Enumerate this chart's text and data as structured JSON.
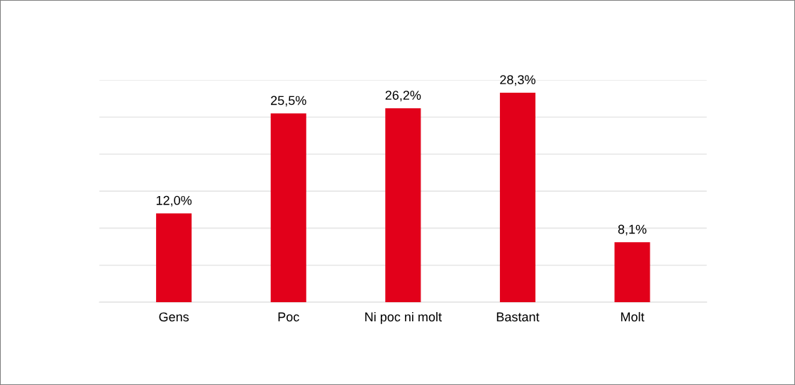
{
  "chart_data": {
    "type": "bar",
    "categories": [
      "Gens",
      "Poc",
      "Ni poc ni molt",
      "Bastant",
      "Molt"
    ],
    "values": [
      12.0,
      25.5,
      26.2,
      28.3,
      8.1
    ],
    "value_labels": [
      "12,0%",
      "25,5%",
      "26,2%",
      "28,3%",
      "8,1%"
    ],
    "color": "#e2001a",
    "ylim": [
      0,
      30
    ],
    "yticks": [
      {
        "value": 0,
        "label": null
      },
      {
        "value": 5,
        "label": null
      },
      {
        "value": 10,
        "label": null
      },
      {
        "value": 15,
        "label": null
      },
      {
        "value": 20,
        "label": null
      },
      {
        "value": 25,
        "label": null
      },
      {
        "value": 30,
        "label": null
      }
    ],
    "grid": "y",
    "tick_labels": "x"
  }
}
